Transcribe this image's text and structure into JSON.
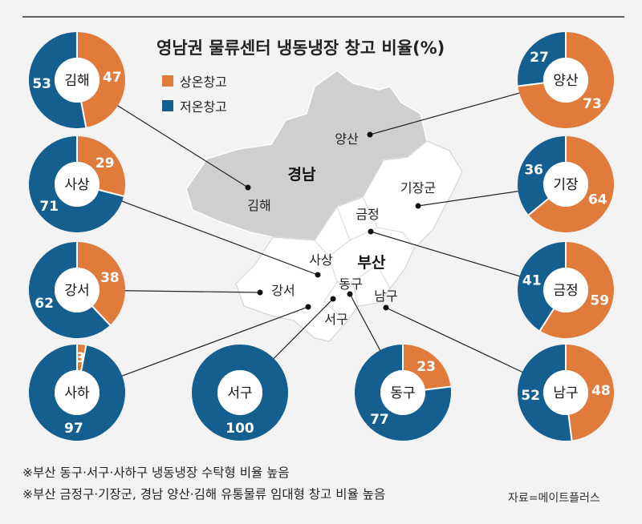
{
  "chart_data": {
    "type": "donut",
    "title": "영남권 물류센터 냉동냉장 창고 비율(%)",
    "legend": [
      {
        "label": "상온창고",
        "color": "#e07b3c"
      },
      {
        "label": "저온창고",
        "color": "#145f8f"
      }
    ],
    "region_labels": {
      "gyeongnam": "경남",
      "busan": "부산"
    },
    "series": [
      {
        "name": "김해",
        "ambient": 47,
        "cold": 53
      },
      {
        "name": "사상",
        "ambient": 29,
        "cold": 71
      },
      {
        "name": "강서",
        "ambient": 38,
        "cold": 62
      },
      {
        "name": "사하",
        "ambient": 3,
        "cold": 97
      },
      {
        "name": "서구",
        "ambient": 0,
        "cold": 100
      },
      {
        "name": "동구",
        "ambient": 23,
        "cold": 77
      },
      {
        "name": "양산",
        "ambient": 73,
        "cold": 27
      },
      {
        "name": "기장",
        "ambient": 64,
        "cold": 36
      },
      {
        "name": "금정",
        "ambient": 59,
        "cold": 41
      },
      {
        "name": "남구",
        "ambient": 48,
        "cold": 52
      }
    ],
    "map_places": [
      "양산",
      "김해",
      "기장군",
      "금정",
      "사상",
      "강서",
      "동구",
      "남구",
      "서구"
    ]
  },
  "notes": [
    "※부산 동구·서구·사하구 냉동냉장 수탁형 비율 높음",
    "※부산 금정구·기장군, 경남 양산·김해 유통물류 임대형 창고 비율 높음"
  ],
  "source": "자료=메이트플러스"
}
